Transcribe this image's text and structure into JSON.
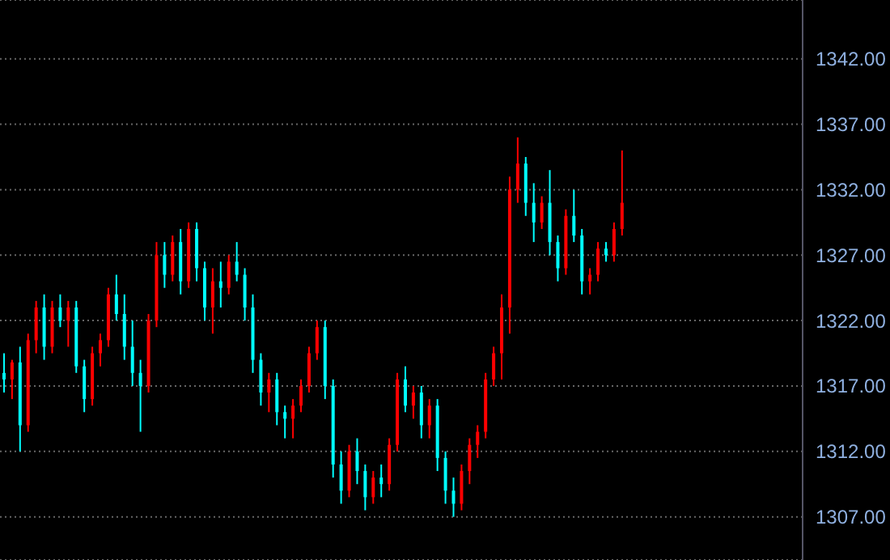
{
  "chart_data": {
    "type": "candlestick",
    "categories": [
      null,
      null,
      null,
      null,
      null,
      null,
      null,
      null,
      null,
      null,
      null,
      null,
      null,
      null,
      null,
      null,
      null,
      null,
      null,
      null,
      null,
      null,
      null,
      null,
      null,
      null,
      null,
      null,
      null,
      null,
      null,
      null,
      null,
      null,
      null,
      null,
      null,
      null,
      null,
      null,
      null,
      null,
      null,
      null,
      null,
      null,
      null,
      null,
      null,
      null,
      null,
      null,
      null,
      null,
      null,
      null,
      null,
      null,
      null,
      null,
      null,
      null,
      null,
      null,
      null,
      null,
      null,
      null,
      null,
      null,
      null,
      null,
      null,
      null,
      null,
      null,
      null,
      null,
      null,
      null,
      null,
      null,
      null,
      null,
      null,
      null,
      null,
      null,
      null,
      null,
      null,
      null,
      null,
      null,
      null,
      null,
      null,
      null,
      null,
      null
    ],
    "ohlc": [
      [
        1318,
        1319.5,
        1316.5,
        1317.5
      ],
      [
        1317.5,
        1319,
        1316,
        1318.8
      ],
      [
        1318.8,
        1320,
        1312,
        1314
      ],
      [
        1314,
        1321,
        1313.5,
        1320.5
      ],
      [
        1320.5,
        1323.5,
        1319.5,
        1323
      ],
      [
        1323,
        1324,
        1319,
        1320
      ],
      [
        1320,
        1323.5,
        1319.5,
        1323
      ],
      [
        1323,
        1324,
        1321.5,
        1322
      ],
      [
        1322,
        1323.5,
        1320,
        1323
      ],
      [
        1323,
        1323.5,
        1318,
        1318.5
      ],
      [
        1318.5,
        1319,
        1315,
        1316
      ],
      [
        1316,
        1320,
        1315.5,
        1319.5
      ],
      [
        1319.5,
        1321,
        1318.5,
        1320.5
      ],
      [
        1320.5,
        1324.5,
        1320,
        1324
      ],
      [
        1324,
        1325.5,
        1322,
        1322.5
      ],
      [
        1322.5,
        1324,
        1319,
        1320
      ],
      [
        1320,
        1322,
        1317,
        1318
      ],
      [
        1318,
        1319,
        1313.5,
        1317
      ],
      [
        1317,
        1322.5,
        1316.5,
        1322
      ],
      [
        1322,
        1328,
        1321.5,
        1327
      ],
      [
        1327,
        1328,
        1324.5,
        1325.5
      ],
      [
        1325.5,
        1328.5,
        1325,
        1328
      ],
      [
        1328,
        1329,
        1324,
        1325
      ],
      [
        1325,
        1329.5,
        1324.5,
        1329
      ],
      [
        1329,
        1329.5,
        1325,
        1326
      ],
      [
        1326,
        1326.5,
        1322,
        1323
      ],
      [
        1323,
        1326,
        1321,
        1325
      ],
      [
        1325,
        1326.5,
        1323,
        1324.5
      ],
      [
        1324.5,
        1327,
        1324,
        1326.5
      ],
      [
        1326.5,
        1328,
        1325,
        1325.5
      ],
      [
        1325.5,
        1326,
        1322,
        1323
      ],
      [
        1323,
        1324,
        1318,
        1319
      ],
      [
        1319,
        1319.5,
        1315.5,
        1316.5
      ],
      [
        1316.5,
        1318,
        1315,
        1317.5
      ],
      [
        1317.5,
        1318,
        1314,
        1315
      ],
      [
        1315,
        1315.5,
        1313,
        1314.5
      ],
      [
        1314.5,
        1316,
        1313,
        1315.5
      ],
      [
        1315.5,
        1317.5,
        1315,
        1317
      ],
      [
        1317,
        1320,
        1316.5,
        1319.5
      ],
      [
        1319.5,
        1322,
        1319,
        1321.5
      ],
      [
        1321.5,
        1322,
        1316,
        1317
      ],
      [
        1317,
        1317.5,
        1310,
        1311
      ],
      [
        1311,
        1312,
        1308,
        1309
      ],
      [
        1309,
        1312.5,
        1308.5,
        1312
      ],
      [
        1312,
        1313,
        1309.5,
        1310.5
      ],
      [
        1310.5,
        1311,
        1307.5,
        1308.5
      ],
      [
        1308.5,
        1310.5,
        1308,
        1310
      ],
      [
        1310,
        1311,
        1308.5,
        1309.5
      ],
      [
        1309.5,
        1313,
        1309,
        1312.5
      ],
      [
        1312.5,
        1318,
        1312,
        1317.5
      ],
      [
        1317.5,
        1318.5,
        1315,
        1315.5
      ],
      [
        1315.5,
        1317,
        1314.5,
        1316.5
      ],
      [
        1316.5,
        1317,
        1313,
        1314
      ],
      [
        1314,
        1316,
        1313,
        1315.5
      ],
      [
        1315.5,
        1316,
        1310.5,
        1311.5
      ],
      [
        1311.5,
        1312,
        1308,
        1309
      ],
      [
        1309,
        1310,
        1307,
        1308
      ],
      [
        1308,
        1311,
        1307.5,
        1310.5
      ],
      [
        1310.5,
        1313,
        1309.5,
        1312.5
      ],
      [
        1312.5,
        1314,
        1311.5,
        1313.5
      ],
      [
        1313.5,
        1318,
        1313,
        1317.5
      ],
      [
        1317.5,
        1320,
        1317,
        1319.5
      ],
      [
        1319.5,
        1324,
        1317.5,
        1323
      ],
      [
        1323,
        1333,
        1321,
        1332
      ],
      [
        1332,
        1336,
        1331,
        1334
      ],
      [
        1334,
        1334.5,
        1330,
        1331
      ],
      [
        1331,
        1332.5,
        1328,
        1329.5
      ],
      [
        1329.5,
        1331.5,
        1329,
        1331
      ],
      [
        1331,
        1333.5,
        1327,
        1328
      ],
      [
        1328,
        1328.5,
        1325,
        1326
      ],
      [
        1326,
        1330.5,
        1325.5,
        1330
      ],
      [
        1330,
        1332,
        1328,
        1328.5
      ],
      [
        1328.5,
        1329,
        1324,
        1325
      ],
      [
        1325,
        1326,
        1324,
        1325.5
      ],
      [
        1325.5,
        1328,
        1325,
        1327.5
      ],
      [
        1327.5,
        1328,
        1326.5,
        1327
      ],
      [
        1327,
        1329.5,
        1326.5,
        1329
      ],
      [
        1329,
        1335,
        1328.5,
        1331
      ],
      null,
      null,
      null,
      null,
      null,
      null,
      null,
      null,
      null,
      null,
      null,
      null,
      null,
      null,
      null,
      null,
      null,
      null,
      null,
      null,
      null,
      null
    ],
    "colors": [
      "#00ffff",
      "#ff0000",
      "#00ffff",
      "#ff0000",
      "#ff0000",
      "#00ffff",
      "#ff0000",
      "#00ffff",
      "#ff0000",
      "#00ffff",
      "#00ffff",
      "#ff0000",
      "#ff0000",
      "#ff0000",
      "#00ffff",
      "#00ffff",
      "#00ffff",
      "#00ffff",
      "#ff0000",
      "#ff0000",
      "#00ffff",
      "#ff0000",
      "#00ffff",
      "#ff0000",
      "#00ffff",
      "#00ffff",
      "#ff0000",
      "#00ffff",
      "#ff0000",
      "#00ffff",
      "#00ffff",
      "#00ffff",
      "#00ffff",
      "#ff0000",
      "#00ffff",
      "#00ffff",
      "#ff0000",
      "#ff0000",
      "#ff0000",
      "#ff0000",
      "#00ffff",
      "#00ffff",
      "#00ffff",
      "#ff0000",
      "#00ffff",
      "#00ffff",
      "#ff0000",
      "#00ffff",
      "#ff0000",
      "#ff0000",
      "#00ffff",
      "#ff0000",
      "#00ffff",
      "#ff0000",
      "#00ffff",
      "#00ffff",
      "#00ffff",
      "#ff0000",
      "#ff0000",
      "#ff0000",
      "#ff0000",
      "#ff0000",
      "#ff0000",
      "#ff0000",
      "#ff0000",
      "#00ffff",
      "#00ffff",
      "#ff0000",
      "#00ffff",
      "#00ffff",
      "#ff0000",
      "#00ffff",
      "#00ffff",
      "#ff0000",
      "#ff0000",
      "#00ffff",
      "#ff0000",
      "#ff0000",
      null,
      null,
      null,
      null,
      null,
      null,
      null,
      null,
      null,
      null,
      null,
      null,
      null,
      null,
      null,
      null,
      null,
      null,
      null,
      null,
      null,
      null
    ],
    "ylim": [
      1303.7,
      1346.5
    ],
    "yticks": [
      {
        "value": 1307,
        "label": "1307.00"
      },
      {
        "value": 1312,
        "label": "1312.00"
      },
      {
        "value": 1317,
        "label": "1317.00"
      },
      {
        "value": 1322,
        "label": "1322.00"
      },
      {
        "value": 1327,
        "label": "1327.00"
      },
      {
        "value": 1332,
        "label": "1332.00"
      },
      {
        "value": 1337,
        "label": "1337.00"
      },
      {
        "value": 1342,
        "label": "1342.00"
      }
    ],
    "grid": "y",
    "tick_labels": "y"
  }
}
